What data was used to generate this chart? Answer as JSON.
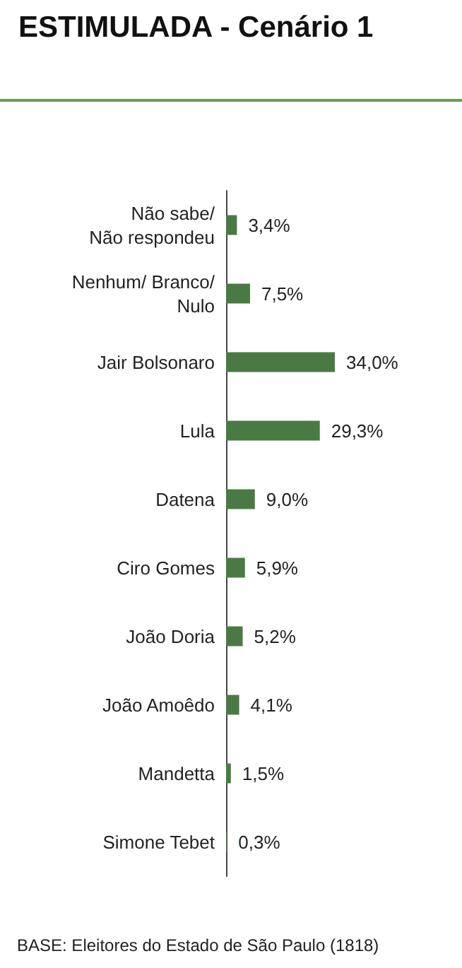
{
  "chart_data": {
    "type": "bar",
    "orientation": "horizontal",
    "title": "ESTIMULADA - Cenário 1",
    "categories": [
      "Não sabe/\nNão respondeu",
      "Nenhum/ Branco/\nNulo",
      "Jair Bolsonaro",
      "Lula",
      "Datena",
      "Ciro Gomes",
      "João Doria",
      "João Amoêdo",
      "Mandetta",
      "Simone Tebet"
    ],
    "values": [
      3.4,
      7.5,
      34.0,
      29.3,
      9.0,
      5.9,
      5.2,
      4.1,
      1.5,
      0.3
    ],
    "value_labels": [
      "3,4%",
      "7,5%",
      "34,0%",
      "29,3%",
      "9,0%",
      "5,9%",
      "5,2%",
      "4,1%",
      "1,5%",
      "0,3%"
    ],
    "color": "#4a7a43",
    "annotations": [
      "BASE: Eleitores do Estado de São Paulo (1818)"
    ]
  }
}
